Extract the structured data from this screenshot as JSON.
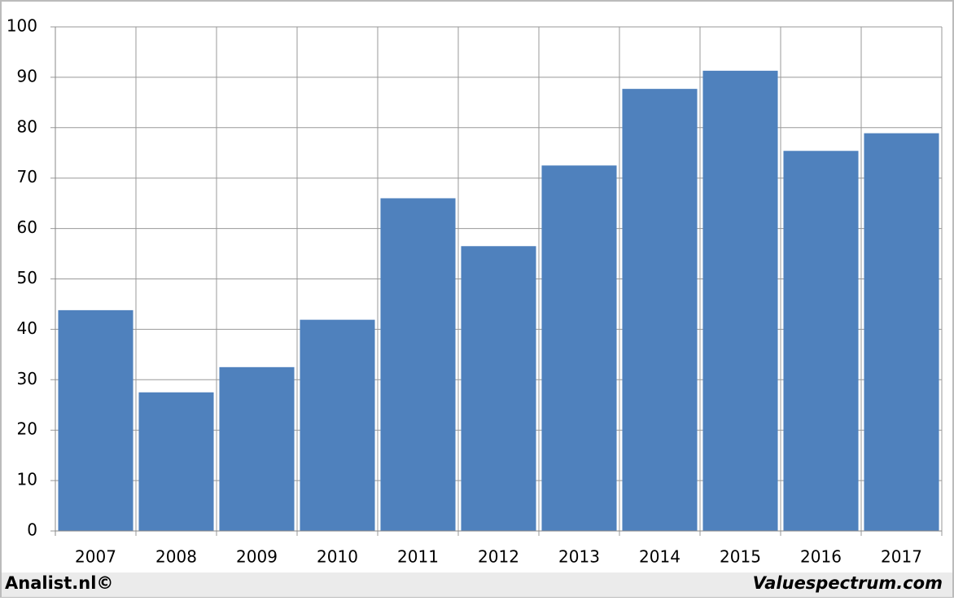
{
  "chart_data": {
    "type": "bar",
    "categories": [
      "2007",
      "2008",
      "2009",
      "2010",
      "2011",
      "2012",
      "2013",
      "2014",
      "2015",
      "2016",
      "2017"
    ],
    "values": [
      43.8,
      27.5,
      32.5,
      41.9,
      66,
      56.5,
      72.5,
      87.7,
      91.3,
      75.4,
      78.9
    ],
    "color": "#4f81bd",
    "ylim": [
      0,
      100
    ],
    "yticks": [
      0,
      10,
      20,
      30,
      40,
      50,
      60,
      70,
      80,
      90,
      100
    ],
    "grid": true
  },
  "footer": {
    "left": "Analist.nl©",
    "right": "Valuespectrum.com"
  }
}
